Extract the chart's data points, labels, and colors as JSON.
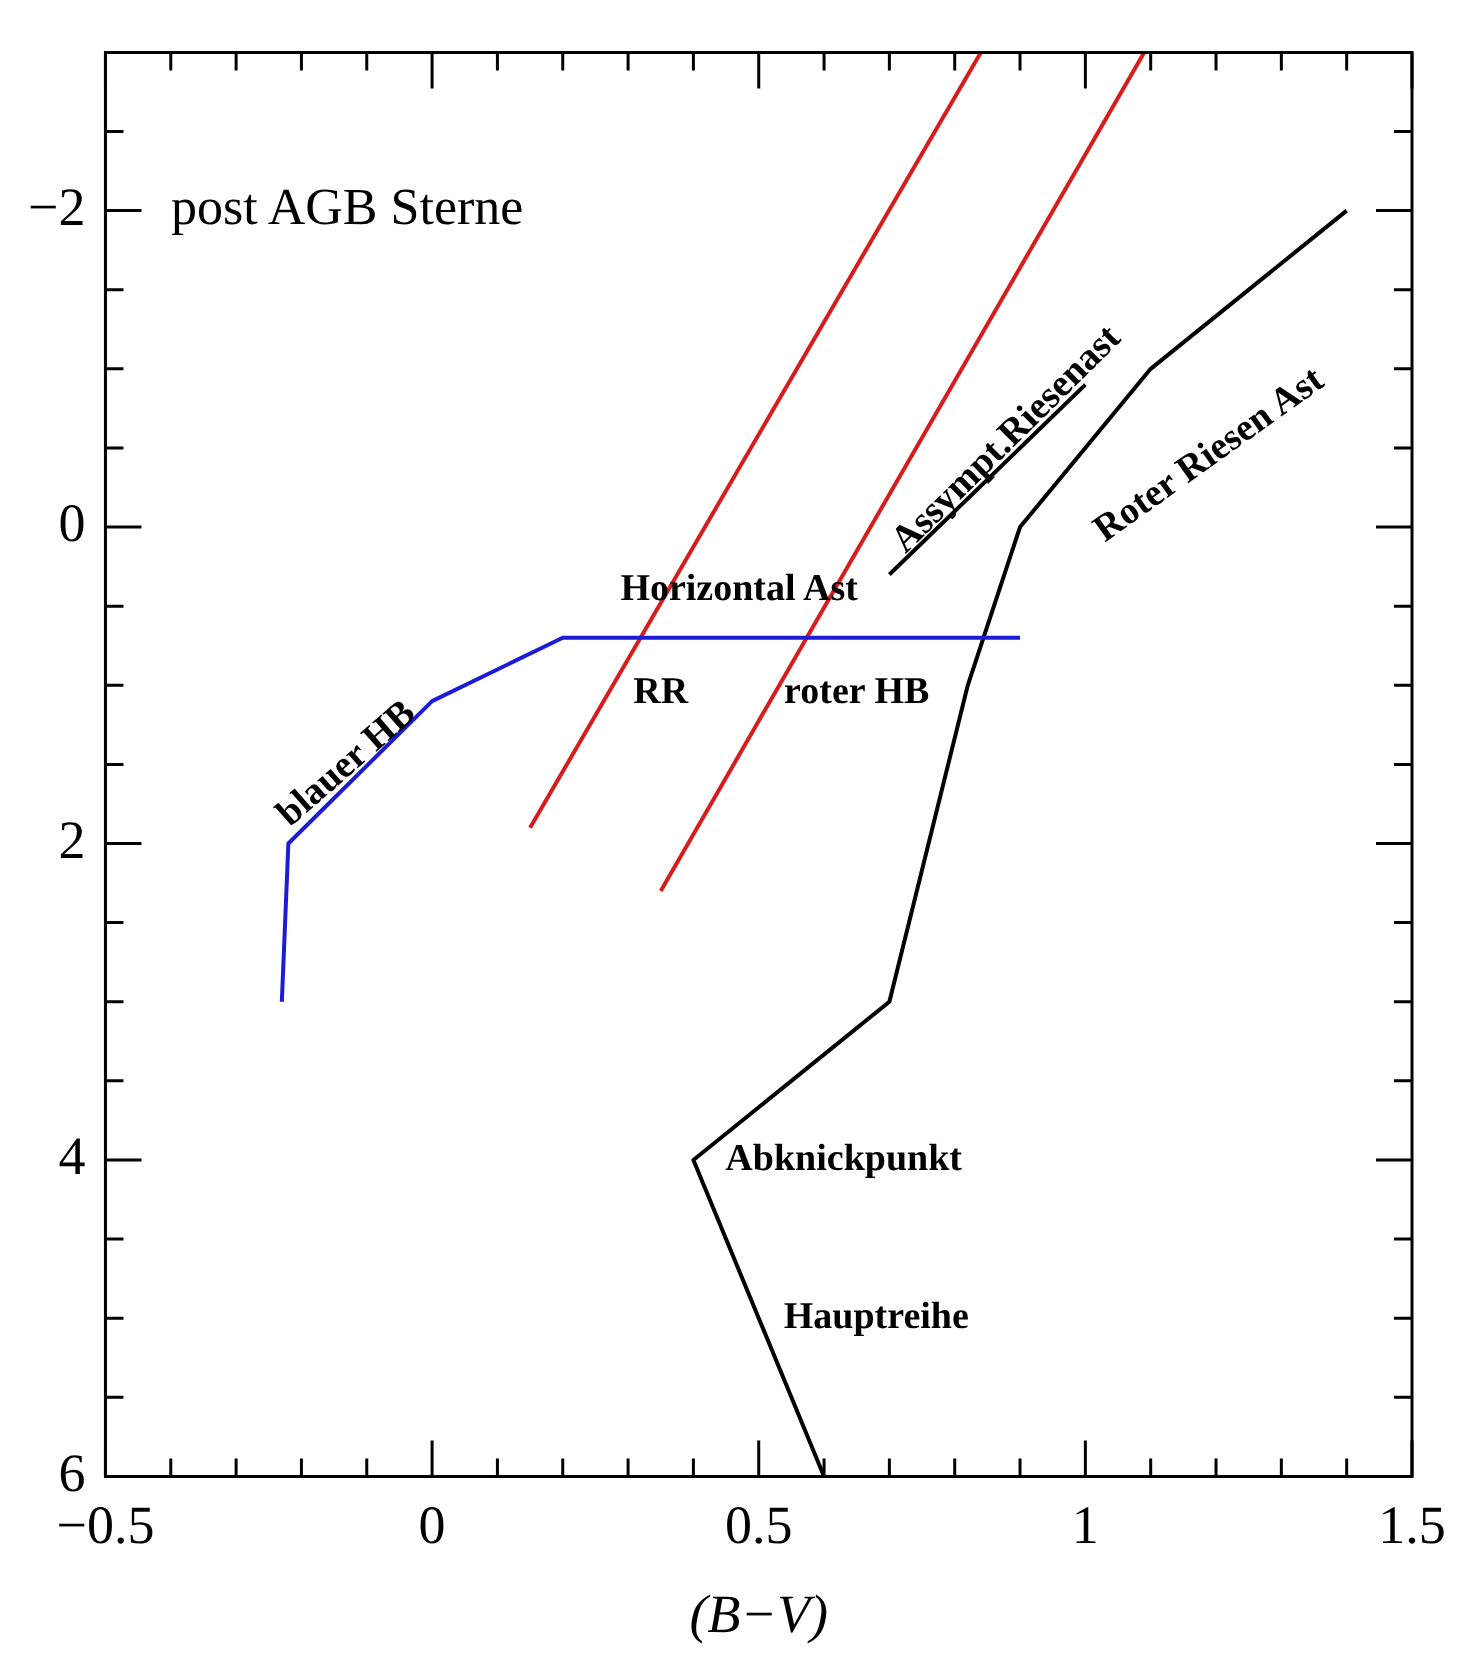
{
  "chart_data": {
    "type": "line",
    "xlabel": "(B−V)",
    "xlim": [
      -0.5,
      1.5
    ],
    "ylim": [
      6,
      -3
    ],
    "xticks": [
      {
        "value": -0.5,
        "label": "−0.5"
      },
      {
        "value": -0.4,
        "label": null
      },
      {
        "value": -0.3,
        "label": null
      },
      {
        "value": -0.2,
        "label": null
      },
      {
        "value": -0.1,
        "label": null
      },
      0,
      {
        "value": 0.1,
        "label": null
      },
      {
        "value": 0.2,
        "label": null
      },
      {
        "value": 0.3,
        "label": null
      },
      {
        "value": 0.4,
        "label": null
      },
      0.5,
      {
        "value": 0.6,
        "label": null
      },
      {
        "value": 0.7,
        "label": null
      },
      {
        "value": 0.8,
        "label": null
      },
      {
        "value": 0.9,
        "label": null
      },
      1,
      {
        "value": 1.1,
        "label": null
      },
      {
        "value": 1.2,
        "label": null
      },
      {
        "value": 1.3,
        "label": null
      },
      {
        "value": 1.4,
        "label": null
      },
      1.5
    ],
    "yticks": [
      {
        "value": -2.5,
        "label": null
      },
      {
        "value": -2,
        "label": "−2"
      },
      {
        "value": -1.5,
        "label": null
      },
      {
        "value": -1,
        "label": null
      },
      {
        "value": -0.5,
        "label": null
      },
      0,
      {
        "value": 0.5,
        "label": null
      },
      {
        "value": 1,
        "label": null
      },
      {
        "value": 1.5,
        "label": null
      },
      2,
      {
        "value": 2.5,
        "label": null
      },
      {
        "value": 3,
        "label": null
      },
      {
        "value": 3.5,
        "label": null
      },
      4,
      {
        "value": 4.5,
        "label": null
      },
      {
        "value": 5,
        "label": null
      },
      {
        "value": 5.5,
        "label": null
      },
      6
    ],
    "grid": false,
    "legend": false,
    "marker": "none",
    "line_style": "solid",
    "series": [
      {
        "color": "#1c1cd6",
        "x": [
          -0.23,
          -0.22,
          0,
          0.2,
          0.9
        ],
        "values": [
          3.0,
          2.0,
          1.1,
          0.7,
          0.7
        ]
      },
      {
        "color": "#d81c1c",
        "x": [
          0.15,
          0.84
        ],
        "values": [
          1.9,
          -3
        ]
      },
      {
        "color": "#d81c1c",
        "x": [
          0.35,
          1.09
        ],
        "values": [
          2.3,
          -3
        ]
      },
      {
        "color": "#000000",
        "x": [
          0.6,
          0.4,
          0.7,
          0.82,
          0.9,
          1.1,
          1.4
        ],
        "values": [
          6,
          4,
          3,
          1,
          0,
          -1,
          -2
        ]
      },
      {
        "color": "#000000",
        "x": [
          0.7,
          1.0
        ],
        "values": [
          0.3,
          -0.9
        ]
      }
    ],
    "annotations": [
      "post AGB Sterne",
      "Horizontal Ast",
      "RR",
      "roter HB",
      "blauer HB",
      "Assympt.Riesenast",
      "Roter Riesen Ast",
      "Abknickpunkt",
      "Hauptreihe"
    ]
  }
}
